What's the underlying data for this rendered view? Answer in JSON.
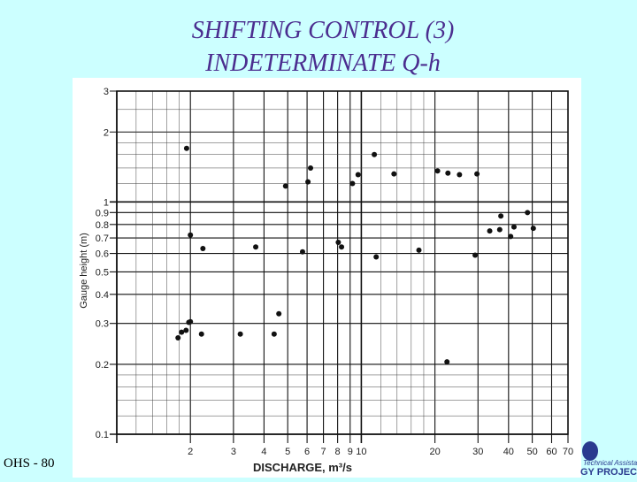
{
  "slide": {
    "title_line1": "SHIFTING CONTROL (3)",
    "title_line2": "INDETERMINATE Q-h",
    "footer_label": "OHS - 80",
    "logo_text_line1": "Technical Assistance",
    "logo_text_line2": "GY PROJECT"
  },
  "chart_data": {
    "type": "scatter",
    "title": "",
    "xlabel": "DISCHARGE, m³/s",
    "ylabel": "Gauge height (m)",
    "xscale": "log",
    "yscale": "log",
    "xlim": [
      1,
      70
    ],
    "ylim": [
      0.1,
      3
    ],
    "xticks": [
      {
        "v": 2,
        "label": "2"
      },
      {
        "v": 3,
        "label": "3"
      },
      {
        "v": 4,
        "label": "4"
      },
      {
        "v": 5,
        "label": "5"
      },
      {
        "v": 6,
        "label": "6"
      },
      {
        "v": 7,
        "label": "7"
      },
      {
        "v": 8,
        "label": "8"
      },
      {
        "v": 9,
        "label": "9"
      },
      {
        "v": 10,
        "label": "10"
      },
      {
        "v": 20,
        "label": "20"
      },
      {
        "v": 30,
        "label": "30"
      },
      {
        "v": 40,
        "label": "40"
      },
      {
        "v": 50,
        "label": "50"
      },
      {
        "v": 60,
        "label": "60"
      },
      {
        "v": 70,
        "label": "70"
      }
    ],
    "yticks": [
      {
        "v": 0.1,
        "label": "0.1"
      },
      {
        "v": 0.2,
        "label": "0.2"
      },
      {
        "v": 0.3,
        "label": "0.3"
      },
      {
        "v": 0.4,
        "label": "0.4"
      },
      {
        "v": 0.5,
        "label": "0.5"
      },
      {
        "v": 0.6,
        "label": "0.6"
      },
      {
        "v": 0.7,
        "label": "0.7"
      },
      {
        "v": 0.8,
        "label": "0.8"
      },
      {
        "v": 0.9,
        "label": "0.9"
      },
      {
        "v": 1,
        "label": "1"
      },
      {
        "v": 2,
        "label": "2"
      },
      {
        "v": 3,
        "label": "3"
      }
    ],
    "grid": true,
    "points": [
      {
        "x": 1.78,
        "y": 0.26
      },
      {
        "x": 1.84,
        "y": 0.275
      },
      {
        "x": 1.92,
        "y": 0.28
      },
      {
        "x": 2.0,
        "y": 0.305
      },
      {
        "x": 1.97,
        "y": 0.303
      },
      {
        "x": 2.22,
        "y": 0.27
      },
      {
        "x": 1.93,
        "y": 1.7
      },
      {
        "x": 2.0,
        "y": 0.72
      },
      {
        "x": 2.25,
        "y": 0.63
      },
      {
        "x": 3.2,
        "y": 0.27
      },
      {
        "x": 3.7,
        "y": 0.64
      },
      {
        "x": 4.4,
        "y": 0.27
      },
      {
        "x": 4.6,
        "y": 0.33
      },
      {
        "x": 4.9,
        "y": 1.17
      },
      {
        "x": 5.75,
        "y": 0.61
      },
      {
        "x": 6.05,
        "y": 1.22
      },
      {
        "x": 6.2,
        "y": 1.4
      },
      {
        "x": 8.05,
        "y": 0.67
      },
      {
        "x": 8.3,
        "y": 0.64
      },
      {
        "x": 9.2,
        "y": 1.2
      },
      {
        "x": 9.7,
        "y": 1.31
      },
      {
        "x": 11.3,
        "y": 1.6
      },
      {
        "x": 11.5,
        "y": 0.58
      },
      {
        "x": 13.6,
        "y": 1.32
      },
      {
        "x": 17.2,
        "y": 0.62
      },
      {
        "x": 20.5,
        "y": 1.36
      },
      {
        "x": 22.6,
        "y": 1.33
      },
      {
        "x": 22.4,
        "y": 0.205
      },
      {
        "x": 25.2,
        "y": 1.31
      },
      {
        "x": 29.2,
        "y": 0.59
      },
      {
        "x": 29.7,
        "y": 1.32
      },
      {
        "x": 33.5,
        "y": 0.75
      },
      {
        "x": 36.8,
        "y": 0.76
      },
      {
        "x": 37.2,
        "y": 0.87
      },
      {
        "x": 40.8,
        "y": 0.71
      },
      {
        "x": 42.1,
        "y": 0.78
      },
      {
        "x": 47.8,
        "y": 0.9
      },
      {
        "x": 50.5,
        "y": 0.77
      }
    ]
  }
}
